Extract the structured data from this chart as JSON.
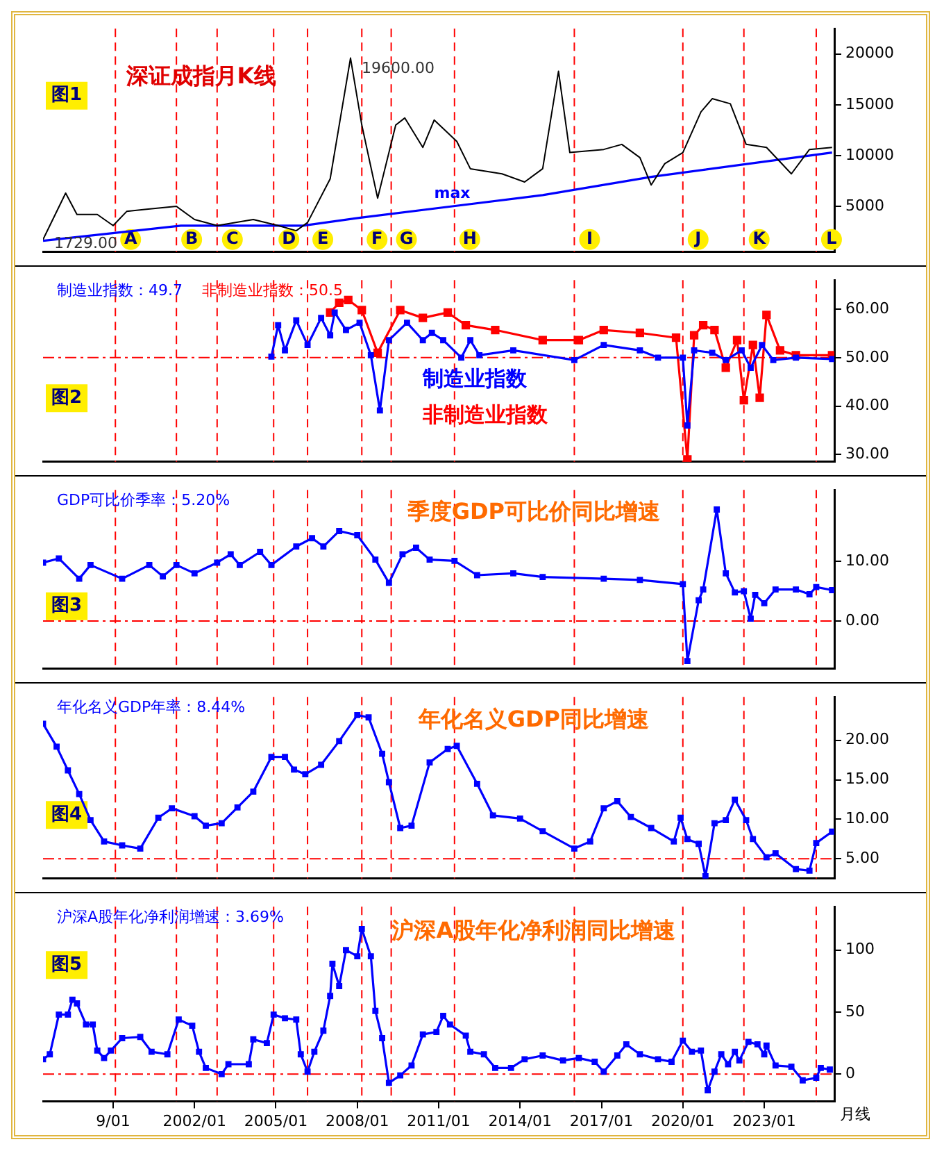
{
  "chart_data": [
    {
      "type": "line",
      "title": "深证成指月K线",
      "xlim": [
        "1996-06",
        "2025-08"
      ],
      "ylim": [
        500,
        22500
      ],
      "yticks": [
        5000,
        10000,
        15000,
        20000
      ],
      "tick_labels": "y",
      "series": [
        {
          "color": "#000000",
          "x": [
            "1996-06",
            "1996-09",
            "1997-04",
            "1997-09",
            "1998-06",
            "1999-01",
            "1999-07",
            "2000-03",
            "2001-05",
            "2002-01",
            "2002-11",
            "2004-03",
            "2005-02",
            "2005-10",
            "2006-03",
            "2007-01",
            "2007-10",
            "2008-03",
            "2008-10",
            "2009-06",
            "2009-10",
            "2010-06",
            "2010-11",
            "2011-09",
            "2012-03",
            "2013-05",
            "2014-03",
            "2014-11",
            "2015-06",
            "2015-11",
            "2017-02",
            "2017-10",
            "2018-06",
            "2018-11",
            "2019-05",
            "2020-01",
            "2020-09",
            "2021-02",
            "2021-10",
            "2022-05",
            "2023-02",
            "2024-01",
            "2024-09",
            "2025-07"
          ],
          "values": [
            1729,
            3100,
            6300,
            4200,
            4200,
            3100,
            4500,
            4700,
            5000,
            3700,
            3100,
            3700,
            3100,
            2600,
            3400,
            7700,
            19600,
            13000,
            5800,
            13000,
            13700,
            10800,
            13500,
            11400,
            8700,
            8200,
            7400,
            8700,
            18300,
            10300,
            10600,
            11100,
            9800,
            7100,
            9200,
            10300,
            14300,
            15600,
            15100,
            11100,
            10800,
            8200,
            10600,
            10800
          ]
        },
        {
          "name": "max",
          "color": "#0000ff",
          "x": [
            "1996-06",
            "2001-07",
            "2006-01",
            "2008-03",
            "2011-07",
            "2014-11",
            "2018-11",
            "2025-07"
          ],
          "values": [
            1600,
            3100,
            3100,
            3900,
            5000,
            6100,
            7900,
            10300
          ]
        }
      ],
      "annotations": [
        {
          "text": "19600.00",
          "x": "2007-10",
          "y": 19600
        },
        {
          "text": "1729.00",
          "x": "1996-06",
          "y": 1729
        },
        "图1"
      ],
      "ref_lines": [
        {
          "axis": "x",
          "value": "1999-02",
          "label": "A",
          "color": "#ff0000",
          "line_style": "dashed"
        },
        {
          "axis": "x",
          "value": "2001-05",
          "label": "B",
          "color": "#ff0000",
          "line_style": "dashed"
        },
        {
          "axis": "x",
          "value": "2002-11",
          "label": "C",
          "color": "#ff0000",
          "line_style": "dashed"
        },
        {
          "axis": "x",
          "value": "2004-12",
          "label": "D",
          "color": "#ff0000",
          "line_style": "dashed"
        },
        {
          "axis": "x",
          "value": "2006-03",
          "label": "E",
          "color": "#ff0000",
          "line_style": "dashed"
        },
        {
          "axis": "x",
          "value": "2008-03",
          "label": "F",
          "color": "#ff0000",
          "line_style": "dashed"
        },
        {
          "axis": "x",
          "value": "2009-04",
          "label": "G",
          "color": "#ff0000",
          "line_style": "dashed"
        },
        {
          "axis": "x",
          "value": "2011-08",
          "label": "H",
          "color": "#ff0000",
          "line_style": "dashed"
        },
        {
          "axis": "x",
          "value": "2016-01",
          "label": "I",
          "color": "#ff0000",
          "line_style": "dashed"
        },
        {
          "axis": "x",
          "value": "2020-01",
          "label": "J",
          "color": "#ff0000",
          "line_style": "dashed"
        },
        {
          "axis": "x",
          "value": "2022-04",
          "label": "K",
          "color": "#ff0000",
          "line_style": "dashed"
        },
        {
          "axis": "x",
          "value": "2024-12",
          "label": "L",
          "color": "#ff0000",
          "line_style": "dashed"
        }
      ]
    },
    {
      "type": "line",
      "marker": "square",
      "xlim": [
        "1996-06",
        "2025-08"
      ],
      "ylim": [
        28.5,
        66
      ],
      "yticks": [
        {
          "value": 30,
          "label": "30.00"
        },
        {
          "value": 40,
          "label": "40.00"
        },
        {
          "value": 50,
          "label": "50.00"
        },
        {
          "value": 60,
          "label": "60.00"
        }
      ],
      "tick_labels": "y",
      "series": [
        {
          "name": "制造业指数",
          "color": "#0000ff",
          "x": [
            "2004-11",
            "2005-02",
            "2005-05",
            "2005-10",
            "2006-03",
            "2006-09",
            "2007-01",
            "2007-03",
            "2007-08",
            "2008-02",
            "2008-07",
            "2008-11",
            "2009-03",
            "2009-11",
            "2010-06",
            "2010-10",
            "2011-03",
            "2011-11",
            "2012-03",
            "2012-07",
            "2013-10",
            "2016-01",
            "2017-02",
            "2018-06",
            "2019-02",
            "2020-01",
            "2020-03",
            "2020-06",
            "2021-02",
            "2021-08",
            "2022-03",
            "2022-07",
            "2022-12",
            "2023-05",
            "2024-03",
            "2025-07"
          ],
          "values": [
            50.2,
            56.7,
            51.5,
            57.7,
            52.6,
            58.2,
            54.6,
            59.3,
            55.7,
            57.2,
            50.5,
            39.1,
            53.6,
            57.2,
            53.6,
            55.1,
            53.6,
            50.0,
            53.6,
            50.5,
            51.5,
            49.5,
            52.6,
            51.5,
            50.0,
            50.0,
            36.0,
            51.5,
            51.0,
            49.5,
            51.5,
            47.9,
            52.6,
            49.5,
            50.0,
            49.7
          ]
        },
        {
          "name": "非制造业指数",
          "color": "#ff0000",
          "x": [
            "2007-01",
            "2007-05",
            "2007-09",
            "2008-03",
            "2008-10",
            "2009-08",
            "2010-06",
            "2011-05",
            "2012-01",
            "2013-02",
            "2014-11",
            "2016-03",
            "2017-02",
            "2018-06",
            "2019-10",
            "2020-03",
            "2020-06",
            "2020-10",
            "2021-03",
            "2021-08",
            "2022-01",
            "2022-04",
            "2022-08",
            "2022-11",
            "2023-02",
            "2023-08",
            "2024-03",
            "2025-07"
          ],
          "values": [
            59.3,
            61.3,
            61.9,
            59.8,
            51.0,
            59.8,
            58.2,
            59.3,
            56.7,
            55.7,
            53.6,
            53.6,
            55.7,
            55.1,
            54.1,
            29.0,
            54.6,
            56.7,
            55.7,
            47.9,
            53.6,
            41.2,
            52.6,
            41.7,
            58.8,
            51.5,
            50.5,
            50.5
          ]
        }
      ],
      "annotations": [
        "制造业指数：49.7",
        "非制造业指数：50.5",
        "图2"
      ],
      "ref_lines": [
        {
          "axis": "y",
          "value": 50,
          "color": "#ff0000",
          "line_style": "dashed"
        },
        {
          "axis": "x",
          "value": "1999-02",
          "color": "#ff0000",
          "line_style": "dashed"
        },
        {
          "axis": "x",
          "value": "2001-05",
          "color": "#ff0000",
          "line_style": "dashed"
        },
        {
          "axis": "x",
          "value": "2002-11",
          "color": "#ff0000",
          "line_style": "dashed"
        },
        {
          "axis": "x",
          "value": "2004-12",
          "color": "#ff0000",
          "line_style": "dashed"
        },
        {
          "axis": "x",
          "value": "2006-03",
          "color": "#ff0000",
          "line_style": "dashed"
        },
        {
          "axis": "x",
          "value": "2008-03",
          "color": "#ff0000",
          "line_style": "dashed"
        },
        {
          "axis": "x",
          "value": "2009-04",
          "color": "#ff0000",
          "line_style": "dashed"
        },
        {
          "axis": "x",
          "value": "2011-08",
          "color": "#ff0000",
          "line_style": "dashed"
        },
        {
          "axis": "x",
          "value": "2016-01",
          "color": "#ff0000",
          "line_style": "dashed"
        },
        {
          "axis": "x",
          "value": "2020-01",
          "color": "#ff0000",
          "line_style": "dashed"
        },
        {
          "axis": "x",
          "value": "2022-04",
          "color": "#ff0000",
          "line_style": "dashed"
        },
        {
          "axis": "x",
          "value": "2024-12",
          "color": "#ff0000",
          "line_style": "dashed"
        }
      ]
    },
    {
      "type": "line",
      "title": "季度GDP可比价同比增速",
      "marker": "square",
      "color": "#0000ff",
      "xlim": [
        "1996-06",
        "2025-08"
      ],
      "ylim": [
        -8,
        22
      ],
      "yticks": [
        {
          "value": 0,
          "label": "0.00"
        },
        {
          "value": 10,
          "label": "10.00"
        }
      ],
      "tick_labels": "y",
      "x": [
        "1996-06",
        "1997-01",
        "1997-10",
        "1998-03",
        "1999-05",
        "2000-05",
        "2000-11",
        "2001-05",
        "2002-01",
        "2002-11",
        "2003-05",
        "2003-09",
        "2004-06",
        "2004-11",
        "2005-10",
        "2006-05",
        "2006-10",
        "2007-05",
        "2008-01",
        "2008-09",
        "2009-03",
        "2009-09",
        "2010-03",
        "2010-09",
        "2011-08",
        "2012-06",
        "2013-10",
        "2014-11",
        "2017-02",
        "2018-06",
        "2020-01",
        "2020-03",
        "2020-08",
        "2020-10",
        "2021-04",
        "2021-08",
        "2021-12",
        "2022-04",
        "2022-07",
        "2022-09",
        "2023-01",
        "2023-06",
        "2024-03",
        "2024-09",
        "2024-12",
        "2025-07"
      ],
      "values": [
        9.8,
        10.5,
        7.1,
        9.4,
        7.1,
        9.4,
        7.5,
        9.4,
        8.0,
        9.8,
        11.2,
        9.4,
        11.6,
        9.4,
        12.5,
        13.9,
        12.5,
        15.1,
        14.4,
        10.3,
        6.4,
        11.2,
        12.3,
        10.3,
        10.1,
        7.7,
        8.0,
        7.4,
        7.1,
        6.9,
        6.2,
        -6.7,
        3.5,
        5.3,
        18.7,
        8.0,
        4.8,
        5.0,
        0.4,
        4.4,
        3.0,
        5.3,
        5.3,
        4.5,
        5.7,
        5.2
      ],
      "annotations": [
        "GDP可比价季率：5.20%",
        "图3"
      ],
      "ref_lines": [
        {
          "axis": "y",
          "value": 0,
          "color": "#ff0000",
          "line_style": "dashed"
        },
        {
          "axis": "x",
          "value": "1999-02",
          "color": "#ff0000",
          "line_style": "dashed"
        },
        {
          "axis": "x",
          "value": "2001-05",
          "color": "#ff0000",
          "line_style": "dashed"
        },
        {
          "axis": "x",
          "value": "2002-11",
          "color": "#ff0000",
          "line_style": "dashed"
        },
        {
          "axis": "x",
          "value": "2004-12",
          "color": "#ff0000",
          "line_style": "dashed"
        },
        {
          "axis": "x",
          "value": "2006-03",
          "color": "#ff0000",
          "line_style": "dashed"
        },
        {
          "axis": "x",
          "value": "2008-03",
          "color": "#ff0000",
          "line_style": "dashed"
        },
        {
          "axis": "x",
          "value": "2009-04",
          "color": "#ff0000",
          "line_style": "dashed"
        },
        {
          "axis": "x",
          "value": "2011-08",
          "color": "#ff0000",
          "line_style": "dashed"
        },
        {
          "axis": "x",
          "value": "2016-01",
          "color": "#ff0000",
          "line_style": "dashed"
        },
        {
          "axis": "x",
          "value": "2020-01",
          "color": "#ff0000",
          "line_style": "dashed"
        },
        {
          "axis": "x",
          "value": "2022-04",
          "color": "#ff0000",
          "line_style": "dashed"
        },
        {
          "axis": "x",
          "value": "2024-12",
          "color": "#ff0000",
          "line_style": "dashed"
        }
      ]
    },
    {
      "type": "line",
      "title": "年化名义GDP同比增速",
      "marker": "square",
      "color": "#0000ff",
      "xlim": [
        "1996-06",
        "2025-08"
      ],
      "ylim": [
        2.5,
        25.5
      ],
      "yticks": [
        {
          "value": 5,
          "label": "5.00"
        },
        {
          "value": 10,
          "label": "10.00"
        },
        {
          "value": 15,
          "label": "15.00"
        },
        {
          "value": 20,
          "label": "20.00"
        }
      ],
      "tick_labels": "y",
      "x": [
        "1996-06",
        "1996-12",
        "1997-05",
        "1997-10",
        "1998-03",
        "1998-09",
        "1999-05",
        "2000-01",
        "2000-09",
        "2001-03",
        "2002-01",
        "2002-06",
        "2003-01",
        "2003-08",
        "2004-03",
        "2004-11",
        "2005-05",
        "2005-09",
        "2006-02",
        "2006-09",
        "2007-05",
        "2008-01",
        "2008-06",
        "2008-12",
        "2009-03",
        "2009-08",
        "2010-01",
        "2010-09",
        "2011-05",
        "2011-09",
        "2012-06",
        "2013-01",
        "2014-01",
        "2014-11",
        "2016-01",
        "2016-08",
        "2017-02",
        "2017-08",
        "2018-02",
        "2018-11",
        "2019-09",
        "2019-12",
        "2020-03",
        "2020-08",
        "2020-11",
        "2021-03",
        "2021-08",
        "2021-12",
        "2022-05",
        "2022-08",
        "2023-02",
        "2023-06",
        "2024-03",
        "2024-09",
        "2024-12",
        "2025-07"
      ],
      "values": [
        22.1,
        19.2,
        16.2,
        13.2,
        9.9,
        7.2,
        6.7,
        6.3,
        10.2,
        11.4,
        10.4,
        9.2,
        9.5,
        11.5,
        13.5,
        17.9,
        17.9,
        16.3,
        15.7,
        16.9,
        19.9,
        23.2,
        22.9,
        18.3,
        14.7,
        8.9,
        9.2,
        17.2,
        18.9,
        19.3,
        14.5,
        10.5,
        10.1,
        8.5,
        6.3,
        7.2,
        11.4,
        12.3,
        10.3,
        8.9,
        7.2,
        10.2,
        7.5,
        6.9,
        2.8,
        9.5,
        9.9,
        12.5,
        9.9,
        7.5,
        5.2,
        5.7,
        3.7,
        3.5,
        7.0,
        8.44
      ],
      "annotations": [
        "年化名义GDP年率：8.44%",
        "图4"
      ],
      "ref_lines": [
        {
          "axis": "y",
          "value": 5,
          "color": "#ff0000",
          "line_style": "dashed"
        },
        {
          "axis": "x",
          "value": "1999-02",
          "color": "#ff0000",
          "line_style": "dashed"
        },
        {
          "axis": "x",
          "value": "2001-05",
          "color": "#ff0000",
          "line_style": "dashed"
        },
        {
          "axis": "x",
          "value": "2002-11",
          "color": "#ff0000",
          "line_style": "dashed"
        },
        {
          "axis": "x",
          "value": "2004-12",
          "color": "#ff0000",
          "line_style": "dashed"
        },
        {
          "axis": "x",
          "value": "2006-03",
          "color": "#ff0000",
          "line_style": "dashed"
        },
        {
          "axis": "x",
          "value": "2008-03",
          "color": "#ff0000",
          "line_style": "dashed"
        },
        {
          "axis": "x",
          "value": "2009-04",
          "color": "#ff0000",
          "line_style": "dashed"
        },
        {
          "axis": "x",
          "value": "2011-08",
          "color": "#ff0000",
          "line_style": "dashed"
        },
        {
          "axis": "x",
          "value": "2016-01",
          "color": "#ff0000",
          "line_style": "dashed"
        },
        {
          "axis": "x",
          "value": "2020-01",
          "color": "#ff0000",
          "line_style": "dashed"
        },
        {
          "axis": "x",
          "value": "2022-04",
          "color": "#ff0000",
          "line_style": "dashed"
        },
        {
          "axis": "x",
          "value": "2024-12",
          "color": "#ff0000",
          "line_style": "dashed"
        }
      ]
    },
    {
      "type": "line",
      "title": "沪深A股年化净利润同比增速",
      "xlabel": "月线",
      "marker": "square",
      "color": "#0000ff",
      "xlim": [
        "1996-06",
        "2025-08"
      ],
      "xticks": [
        {
          "value": "1999-01",
          "label": "9/01"
        },
        {
          "value": "2002-01",
          "label": "2002/01"
        },
        {
          "value": "2005-01",
          "label": "2005/01"
        },
        {
          "value": "2008-01",
          "label": "2008/01"
        },
        {
          "value": "2011-01",
          "label": "2011/01"
        },
        {
          "value": "2014-01",
          "label": "2014/01"
        },
        {
          "value": "2017-01",
          "label": "2017/01"
        },
        {
          "value": "2020-01",
          "label": "2020/01"
        },
        {
          "value": "2023-01",
          "label": "2023/01"
        }
      ],
      "ylim": [
        -22,
        135
      ],
      "yticks": [
        0,
        50,
        100
      ],
      "x": [
        "1996-06",
        "1996-09",
        "1997-01",
        "1997-05",
        "1997-07",
        "1997-09",
        "1998-01",
        "1998-04",
        "1998-06",
        "1998-09",
        "1998-12",
        "1999-05",
        "2000-01",
        "2000-06",
        "2001-01",
        "2001-06",
        "2001-12",
        "2002-03",
        "2002-06",
        "2003-01",
        "2003-04",
        "2004-01",
        "2004-03",
        "2004-09",
        "2004-12",
        "2005-05",
        "2005-10",
        "2005-12",
        "2006-03",
        "2006-06",
        "2006-10",
        "2007-01",
        "2007-02",
        "2007-05",
        "2007-08",
        "2008-01",
        "2008-03",
        "2008-07",
        "2008-09",
        "2008-12",
        "2009-03",
        "2009-08",
        "2010-01",
        "2010-06",
        "2010-12",
        "2011-03",
        "2011-06",
        "2012-01",
        "2012-03",
        "2012-09",
        "2013-02",
        "2013-09",
        "2014-03",
        "2014-11",
        "2015-08",
        "2016-03",
        "2016-10",
        "2017-02",
        "2017-08",
        "2017-12",
        "2018-06",
        "2019-02",
        "2019-08",
        "2020-01",
        "2020-05",
        "2020-09",
        "2020-12",
        "2021-03",
        "2021-06",
        "2021-09",
        "2021-12",
        "2022-02",
        "2022-06",
        "2022-10",
        "2023-01",
        "2023-02",
        "2023-06",
        "2024-01",
        "2024-06",
        "2024-12",
        "2025-02",
        "2025-06"
      ],
      "values": [
        12,
        16,
        48,
        48,
        60,
        57,
        40,
        40,
        19,
        13,
        19,
        29,
        30,
        18,
        16,
        44,
        39,
        18,
        5,
        0,
        8,
        8,
        28,
        25,
        48,
        45,
        44,
        16,
        2,
        18,
        35,
        63,
        89,
        71,
        100,
        95,
        117,
        95,
        51,
        29,
        -7,
        -1,
        7,
        32,
        34,
        47,
        40,
        31,
        18,
        16,
        5,
        5,
        12,
        15,
        11,
        13,
        10,
        2,
        15,
        24,
        16,
        12,
        10,
        27,
        18,
        19,
        -13,
        2,
        16,
        8,
        18,
        11,
        26,
        24,
        16,
        23,
        7,
        6,
        -5,
        -3,
        5,
        3.69
      ],
      "annotations": [
        "沪深A股年化净利润增速：3.69%",
        "图5"
      ],
      "ref_lines": [
        {
          "axis": "y",
          "value": 0,
          "color": "#ff0000",
          "line_style": "dashed"
        },
        {
          "axis": "x",
          "value": "1999-02",
          "color": "#ff0000",
          "line_style": "dashed"
        },
        {
          "axis": "x",
          "value": "2001-05",
          "color": "#ff0000",
          "line_style": "dashed"
        },
        {
          "axis": "x",
          "value": "2002-11",
          "color": "#ff0000",
          "line_style": "dashed"
        },
        {
          "axis": "x",
          "value": "2004-12",
          "color": "#ff0000",
          "line_style": "dashed"
        },
        {
          "axis": "x",
          "value": "2006-03",
          "color": "#ff0000",
          "line_style": "dashed"
        },
        {
          "axis": "x",
          "value": "2008-03",
          "color": "#ff0000",
          "line_style": "dashed"
        },
        {
          "axis": "x",
          "value": "2009-04",
          "color": "#ff0000",
          "line_style": "dashed"
        },
        {
          "axis": "x",
          "value": "2011-08",
          "color": "#ff0000",
          "line_style": "dashed"
        },
        {
          "axis": "x",
          "value": "2016-01",
          "color": "#ff0000",
          "line_style": "dashed"
        },
        {
          "axis": "x",
          "value": "2020-01",
          "color": "#ff0000",
          "line_style": "dashed"
        },
        {
          "axis": "x",
          "value": "2022-04",
          "color": "#ff0000",
          "line_style": "dashed"
        },
        {
          "axis": "x",
          "value": "2024-12",
          "color": "#ff0000",
          "line_style": "dashed"
        }
      ]
    }
  ]
}
